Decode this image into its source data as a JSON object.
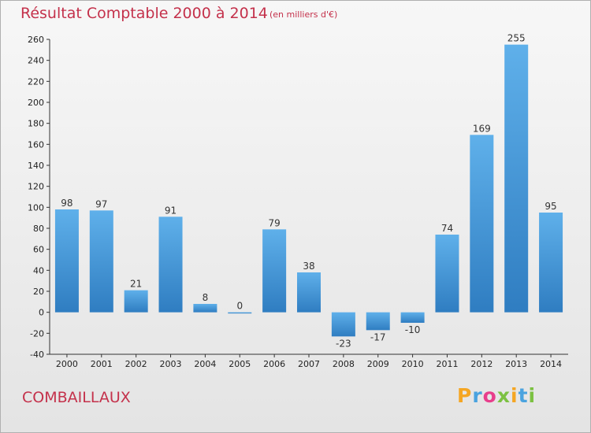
{
  "title": "Résultat Comptable 2000 à 2014",
  "subtitle": "(en milliers d'€)",
  "city": "COMBAILLAUX",
  "logo": {
    "letters": [
      "P",
      "r",
      "o",
      "x",
      "i",
      "t",
      "i"
    ],
    "colors": [
      "#f5a623",
      "#4aa3df",
      "#e83e8c",
      "#7cc142",
      "#f5a623",
      "#4aa3df",
      "#7cc142"
    ]
  },
  "colors": {
    "bar_top": "#5fb0ea",
    "bar_bottom": "#2f7dc1",
    "title": "#c4314b"
  },
  "chart_data": {
    "type": "bar",
    "title": "Résultat Comptable 2000 à 2014",
    "xlabel": "",
    "ylabel": "",
    "categories": [
      "2000",
      "2001",
      "2002",
      "2003",
      "2004",
      "2005",
      "2006",
      "2007",
      "2008",
      "2009",
      "2010",
      "2011",
      "2012",
      "2013",
      "2014"
    ],
    "values": [
      98,
      97,
      21,
      91,
      8,
      0,
      79,
      38,
      -23,
      -17,
      -10,
      74,
      169,
      255,
      95
    ],
    "ylim": [
      -40,
      260
    ],
    "yticks": [
      -40,
      -20,
      0,
      20,
      40,
      60,
      80,
      100,
      120,
      140,
      160,
      180,
      200,
      220,
      240,
      260
    ],
    "grid": false
  }
}
